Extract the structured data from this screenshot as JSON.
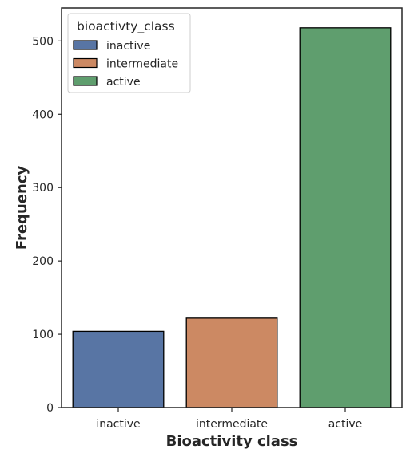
{
  "chart_data": {
    "type": "bar",
    "categories": [
      "inactive",
      "intermediate",
      "active"
    ],
    "values": [
      104,
      122,
      518
    ],
    "colors": [
      "#5875a4",
      "#cc8963",
      "#5f9e6e"
    ],
    "edge_color": "#000000",
    "title": "",
    "xlabel": "Bioactivity class",
    "ylabel": "Frequency",
    "ylim": [
      0,
      545
    ],
    "yticks": [
      0,
      100,
      200,
      300,
      400,
      500
    ],
    "grid": false,
    "legend": {
      "title": "bioactivty_class",
      "placement": "top-left",
      "entries": [
        "inactive",
        "intermediate",
        "active"
      ]
    }
  }
}
